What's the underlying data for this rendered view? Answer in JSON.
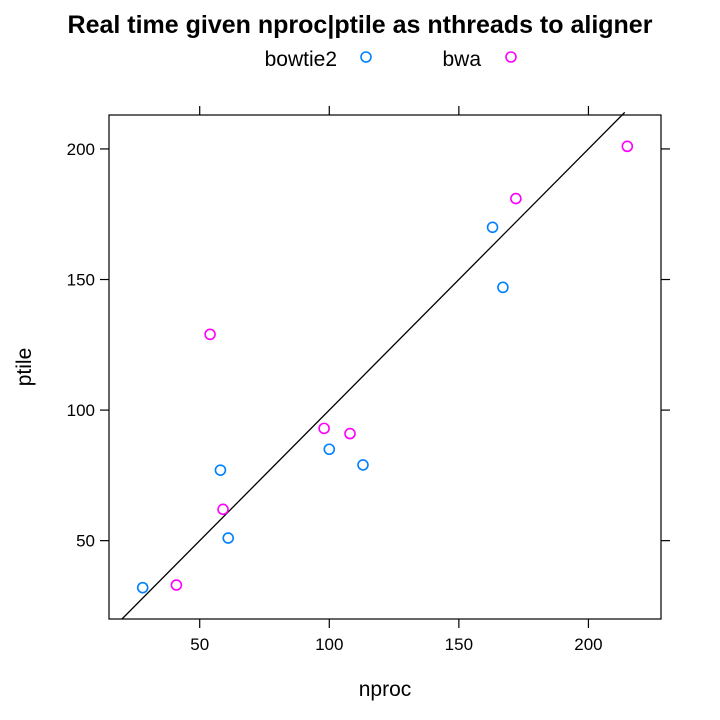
{
  "chart_data": {
    "type": "scatter",
    "title": "Real time given nproc|ptile as nthreads to aligner",
    "xlabel": "nproc",
    "ylabel": "ptile",
    "xlim": [
      15,
      228
    ],
    "ylim": [
      20,
      213
    ],
    "x_ticks": [
      50,
      100,
      150,
      200
    ],
    "y_ticks": [
      50,
      100,
      150,
      200
    ],
    "grid": false,
    "legend_position": "top",
    "reference_line": {
      "type": "identity",
      "x": [
        20,
        214
      ],
      "y": [
        20,
        214
      ]
    },
    "series": [
      {
        "name": "bowtie2",
        "color": "#0080ff",
        "marker": "open-circle",
        "x": [
          28,
          58,
          61,
          100,
          113,
          163,
          167
        ],
        "y": [
          32,
          77,
          51,
          85,
          79,
          170,
          147
        ]
      },
      {
        "name": "bwa",
        "color": "#ff00ff",
        "marker": "open-circle",
        "x": [
          41,
          54,
          59,
          98,
          108,
          172,
          215
        ],
        "y": [
          33,
          129,
          62,
          93,
          91,
          181,
          201
        ]
      }
    ]
  }
}
